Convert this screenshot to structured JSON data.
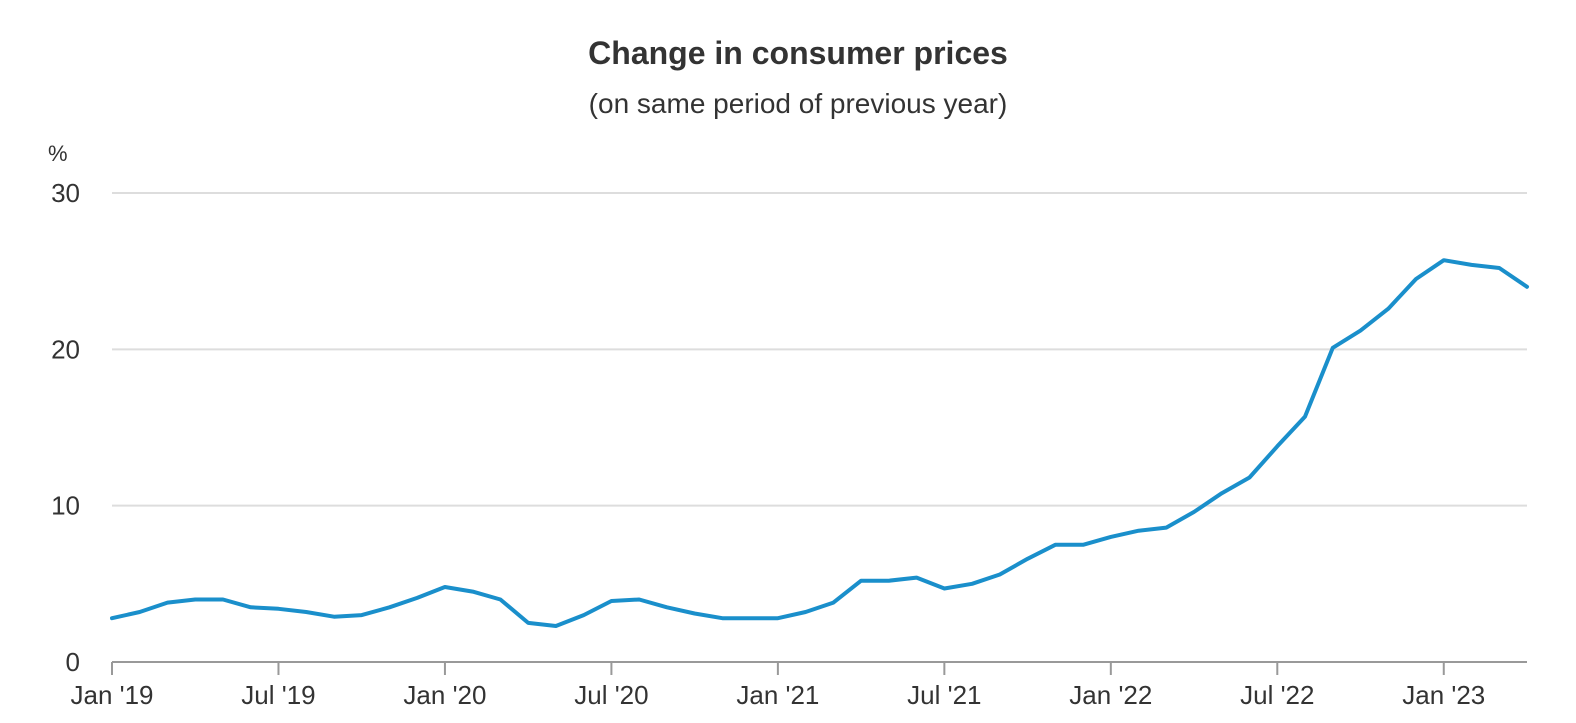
{
  "chart_data": {
    "type": "line",
    "title": "Change in consumer prices",
    "subtitle": "(on same period of previous year)",
    "ylabel": "%",
    "xlabel": "",
    "ylim": [
      0,
      30
    ],
    "yticks": [
      0,
      10,
      20,
      30
    ],
    "ytick_labels": [
      "0",
      "10",
      "20",
      "30"
    ],
    "grid": true,
    "line_color": "#1a8fcb",
    "x_range": [
      0,
      51
    ],
    "xticks": [
      {
        "index": 0,
        "label": "Jan '19"
      },
      {
        "index": 6,
        "label": "Jul '19"
      },
      {
        "index": 12,
        "label": "Jan '20"
      },
      {
        "index": 18,
        "label": "Jul '20"
      },
      {
        "index": 24,
        "label": "Jan '21"
      },
      {
        "index": 30,
        "label": "Jul '21"
      },
      {
        "index": 36,
        "label": "Jan '22"
      },
      {
        "index": 42,
        "label": "Jul '22"
      },
      {
        "index": 48,
        "label": "Jan '23"
      }
    ],
    "series": [
      {
        "name": "Change in consumer prices",
        "x": [
          0,
          1,
          2,
          3,
          4,
          5,
          6,
          7,
          8,
          9,
          10,
          11,
          12,
          13,
          14,
          15,
          16,
          17,
          18,
          19,
          20,
          21,
          22,
          23,
          24,
          25,
          26,
          27,
          28,
          29,
          30,
          31,
          32,
          33,
          34,
          35,
          36,
          37,
          38,
          39,
          40,
          41,
          42,
          43,
          44,
          45,
          46,
          47,
          48,
          49,
          50,
          51
        ],
        "values": [
          2.8,
          3.2,
          3.8,
          4.0,
          4.0,
          3.5,
          3.4,
          3.2,
          2.9,
          3.0,
          3.5,
          4.1,
          4.8,
          4.5,
          4.0,
          2.5,
          2.3,
          3.0,
          3.9,
          4.0,
          3.5,
          3.1,
          2.8,
          2.8,
          2.8,
          3.2,
          3.8,
          5.2,
          5.2,
          5.4,
          4.7,
          5.0,
          5.6,
          6.6,
          7.5,
          7.5,
          8.0,
          8.4,
          8.6,
          9.6,
          10.8,
          11.8,
          13.8,
          15.7,
          20.1,
          21.2,
          22.6,
          24.5,
          25.7,
          25.4,
          25.2,
          24.0
        ]
      }
    ]
  }
}
